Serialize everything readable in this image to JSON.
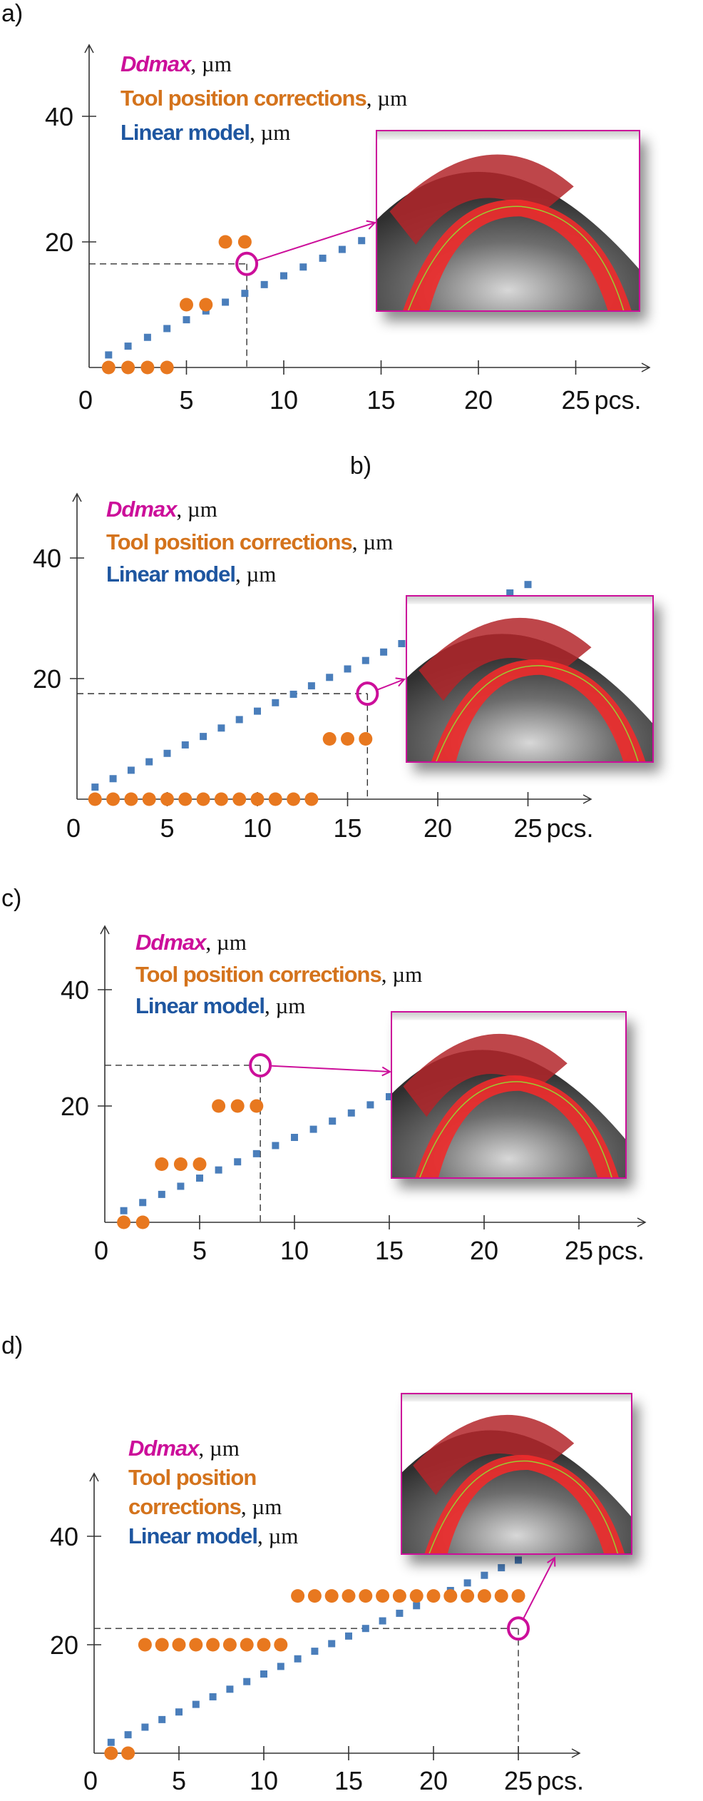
{
  "colors": {
    "ddmax": "#cc0f9a",
    "corrections": "#e8781f",
    "linear": "#4a7ebb",
    "legend_linear": "#1e56a0",
    "corrections_text": "#d4731c"
  },
  "chart_data": [
    {
      "type": "scatter",
      "panel_label": "a)",
      "xlabel": "pcs.",
      "xticks": [
        "0",
        "5",
        "10",
        "15",
        "20",
        "25"
      ],
      "yticks": [
        "20",
        "40"
      ],
      "xlim": [
        0,
        25
      ],
      "ylim": [
        0,
        45
      ],
      "legend": [
        {
          "label": "Ddmax",
          "unit": ", µm",
          "series": "ddmax"
        },
        {
          "label": "Tool position corrections",
          "unit": ", µm",
          "series": "corrections"
        },
        {
          "label": "Linear model",
          "unit": ", µm",
          "series": "linear"
        }
      ],
      "series": [
        {
          "name": "Linear model, µm",
          "key": "linear",
          "x": [
            1,
            2,
            3,
            4,
            5,
            6,
            7,
            8,
            9,
            10,
            11,
            12,
            13,
            14,
            15,
            16,
            17,
            18,
            19,
            20,
            21,
            22,
            23,
            24,
            25
          ],
          "y": [
            2,
            3.4,
            4.8,
            6.2,
            7.6,
            9,
            10.4,
            11.8,
            13.2,
            14.6,
            16,
            17.4,
            18.8,
            20.2,
            21.6,
            23,
            24.4,
            25.8,
            27.2,
            28.6,
            30,
            31.4,
            32.8,
            34.2,
            35.6
          ]
        },
        {
          "name": "Tool position corrections, µm",
          "key": "corrections",
          "x": [
            1,
            2,
            3,
            4,
            5,
            6,
            7,
            8
          ],
          "y": [
            0,
            0,
            0,
            0,
            10,
            10,
            20,
            20
          ]
        },
        {
          "name": "Ddmax, µm",
          "key": "ddmax",
          "x": [
            8.1
          ],
          "y": [
            16.5
          ]
        }
      ]
    },
    {
      "type": "scatter",
      "panel_label": "b)",
      "xlabel": "pcs.",
      "xticks": [
        "0",
        "5",
        "10",
        "15",
        "20",
        "25"
      ],
      "yticks": [
        "20",
        "40"
      ],
      "xlim": [
        0,
        25
      ],
      "ylim": [
        0,
        45
      ],
      "legend": [
        {
          "label": "Ddmax",
          "unit": ", µm",
          "series": "ddmax"
        },
        {
          "label": "Tool position corrections",
          "unit": ", µm",
          "series": "corrections"
        },
        {
          "label": "Linear model",
          "unit": ", µm",
          "series": "linear"
        }
      ],
      "series": [
        {
          "name": "Linear model, µm",
          "key": "linear",
          "x": [
            1,
            2,
            3,
            4,
            5,
            6,
            7,
            8,
            9,
            10,
            11,
            12,
            13,
            14,
            15,
            16,
            17,
            18,
            19,
            20,
            21,
            22,
            23,
            24,
            25
          ],
          "y": [
            2,
            3.4,
            4.8,
            6.2,
            7.6,
            9,
            10.4,
            11.8,
            13.2,
            14.6,
            16,
            17.4,
            18.8,
            20.2,
            21.6,
            23,
            24.4,
            25.8,
            27.2,
            28.6,
            30,
            31.4,
            32.8,
            34.2,
            35.6
          ]
        },
        {
          "name": "Tool position corrections, µm",
          "key": "corrections",
          "x": [
            1,
            2,
            3,
            4,
            5,
            6,
            7,
            8,
            9,
            10,
            11,
            12,
            13,
            14,
            15,
            16
          ],
          "y": [
            0,
            0,
            0,
            0,
            0,
            0,
            0,
            0,
            0,
            0,
            0,
            0,
            0,
            10,
            10,
            10
          ]
        },
        {
          "name": "Ddmax, µm",
          "key": "ddmax",
          "x": [
            16.1
          ],
          "y": [
            17.5
          ]
        }
      ]
    },
    {
      "type": "scatter",
      "panel_label": "c)",
      "xlabel": "pcs.",
      "xticks": [
        "0",
        "5",
        "10",
        "15",
        "20",
        "25"
      ],
      "yticks": [
        "20",
        "40"
      ],
      "xlim": [
        0,
        25
      ],
      "ylim": [
        0,
        45
      ],
      "legend": [
        {
          "label": "Ddmax",
          "unit": ", µm",
          "series": "ddmax"
        },
        {
          "label": "Tool position corrections",
          "unit": ", µm",
          "series": "corrections"
        },
        {
          "label": "Linear model",
          "unit": ", µm",
          "series": "linear"
        }
      ],
      "series": [
        {
          "name": "Linear model, µm",
          "key": "linear",
          "x": [
            1,
            2,
            3,
            4,
            5,
            6,
            7,
            8,
            9,
            10,
            11,
            12,
            13,
            14,
            15,
            16,
            17,
            18,
            19,
            20,
            21,
            22,
            23,
            24,
            25
          ],
          "y": [
            2,
            3.4,
            4.8,
            6.2,
            7.6,
            9,
            10.4,
            11.8,
            13.2,
            14.6,
            16,
            17.4,
            18.8,
            20.2,
            21.6,
            23,
            24.4,
            25.8,
            27.2,
            28.6,
            30,
            31.4,
            32.8,
            34.2,
            35.6
          ]
        },
        {
          "name": "Tool position corrections, µm",
          "key": "corrections",
          "x": [
            1,
            2,
            3,
            4,
            5,
            6,
            7,
            8
          ],
          "y": [
            0,
            0,
            10,
            10,
            10,
            20,
            20,
            20
          ]
        },
        {
          "name": "Ddmax, µm",
          "key": "ddmax",
          "x": [
            8.2
          ],
          "y": [
            27
          ]
        }
      ]
    },
    {
      "type": "scatter",
      "panel_label": "d)",
      "xlabel": "pcs.",
      "xticks": [
        "0",
        "5",
        "10",
        "15",
        "20",
        "25"
      ],
      "yticks": [
        "20",
        "40"
      ],
      "xlim": [
        0,
        25
      ],
      "ylim": [
        0,
        45
      ],
      "legend": [
        {
          "label": "Ddmax",
          "unit": ", µm",
          "series": "ddmax"
        },
        {
          "label": "Tool position",
          "unit": "",
          "series": "corrections"
        },
        {
          "label": "corrections",
          "unit": ", µm",
          "series": "corrections"
        },
        {
          "label": "Linear model",
          "unit": ", µm",
          "series": "linear"
        }
      ],
      "series": [
        {
          "name": "Linear model, µm",
          "key": "linear",
          "x": [
            1,
            2,
            3,
            4,
            5,
            6,
            7,
            8,
            9,
            10,
            11,
            12,
            13,
            14,
            15,
            16,
            17,
            18,
            19,
            20,
            21,
            22,
            23,
            24,
            25
          ],
          "y": [
            2,
            3.4,
            4.8,
            6.2,
            7.6,
            9,
            10.4,
            11.8,
            13.2,
            14.6,
            16,
            17.4,
            18.8,
            20.2,
            21.6,
            23,
            24.4,
            25.8,
            27.2,
            28.6,
            30,
            31.4,
            32.8,
            34.2,
            35.6
          ]
        },
        {
          "name": "Tool position corrections, µm",
          "key": "corrections",
          "x": [
            1,
            2,
            3,
            4,
            5,
            6,
            7,
            8,
            9,
            10,
            11,
            12,
            13,
            14,
            15,
            16,
            17,
            18,
            19,
            20,
            21,
            22,
            23,
            24,
            25
          ],
          "y": [
            0,
            0,
            20,
            20,
            20,
            20,
            20,
            20,
            20,
            20,
            20,
            29,
            29,
            29,
            29,
            29,
            29,
            29,
            29,
            29,
            29,
            29,
            29,
            29,
            29
          ]
        },
        {
          "name": "Ddmax, µm",
          "key": "ddmax",
          "x": [
            25
          ],
          "y": [
            23
          ]
        }
      ]
    }
  ]
}
